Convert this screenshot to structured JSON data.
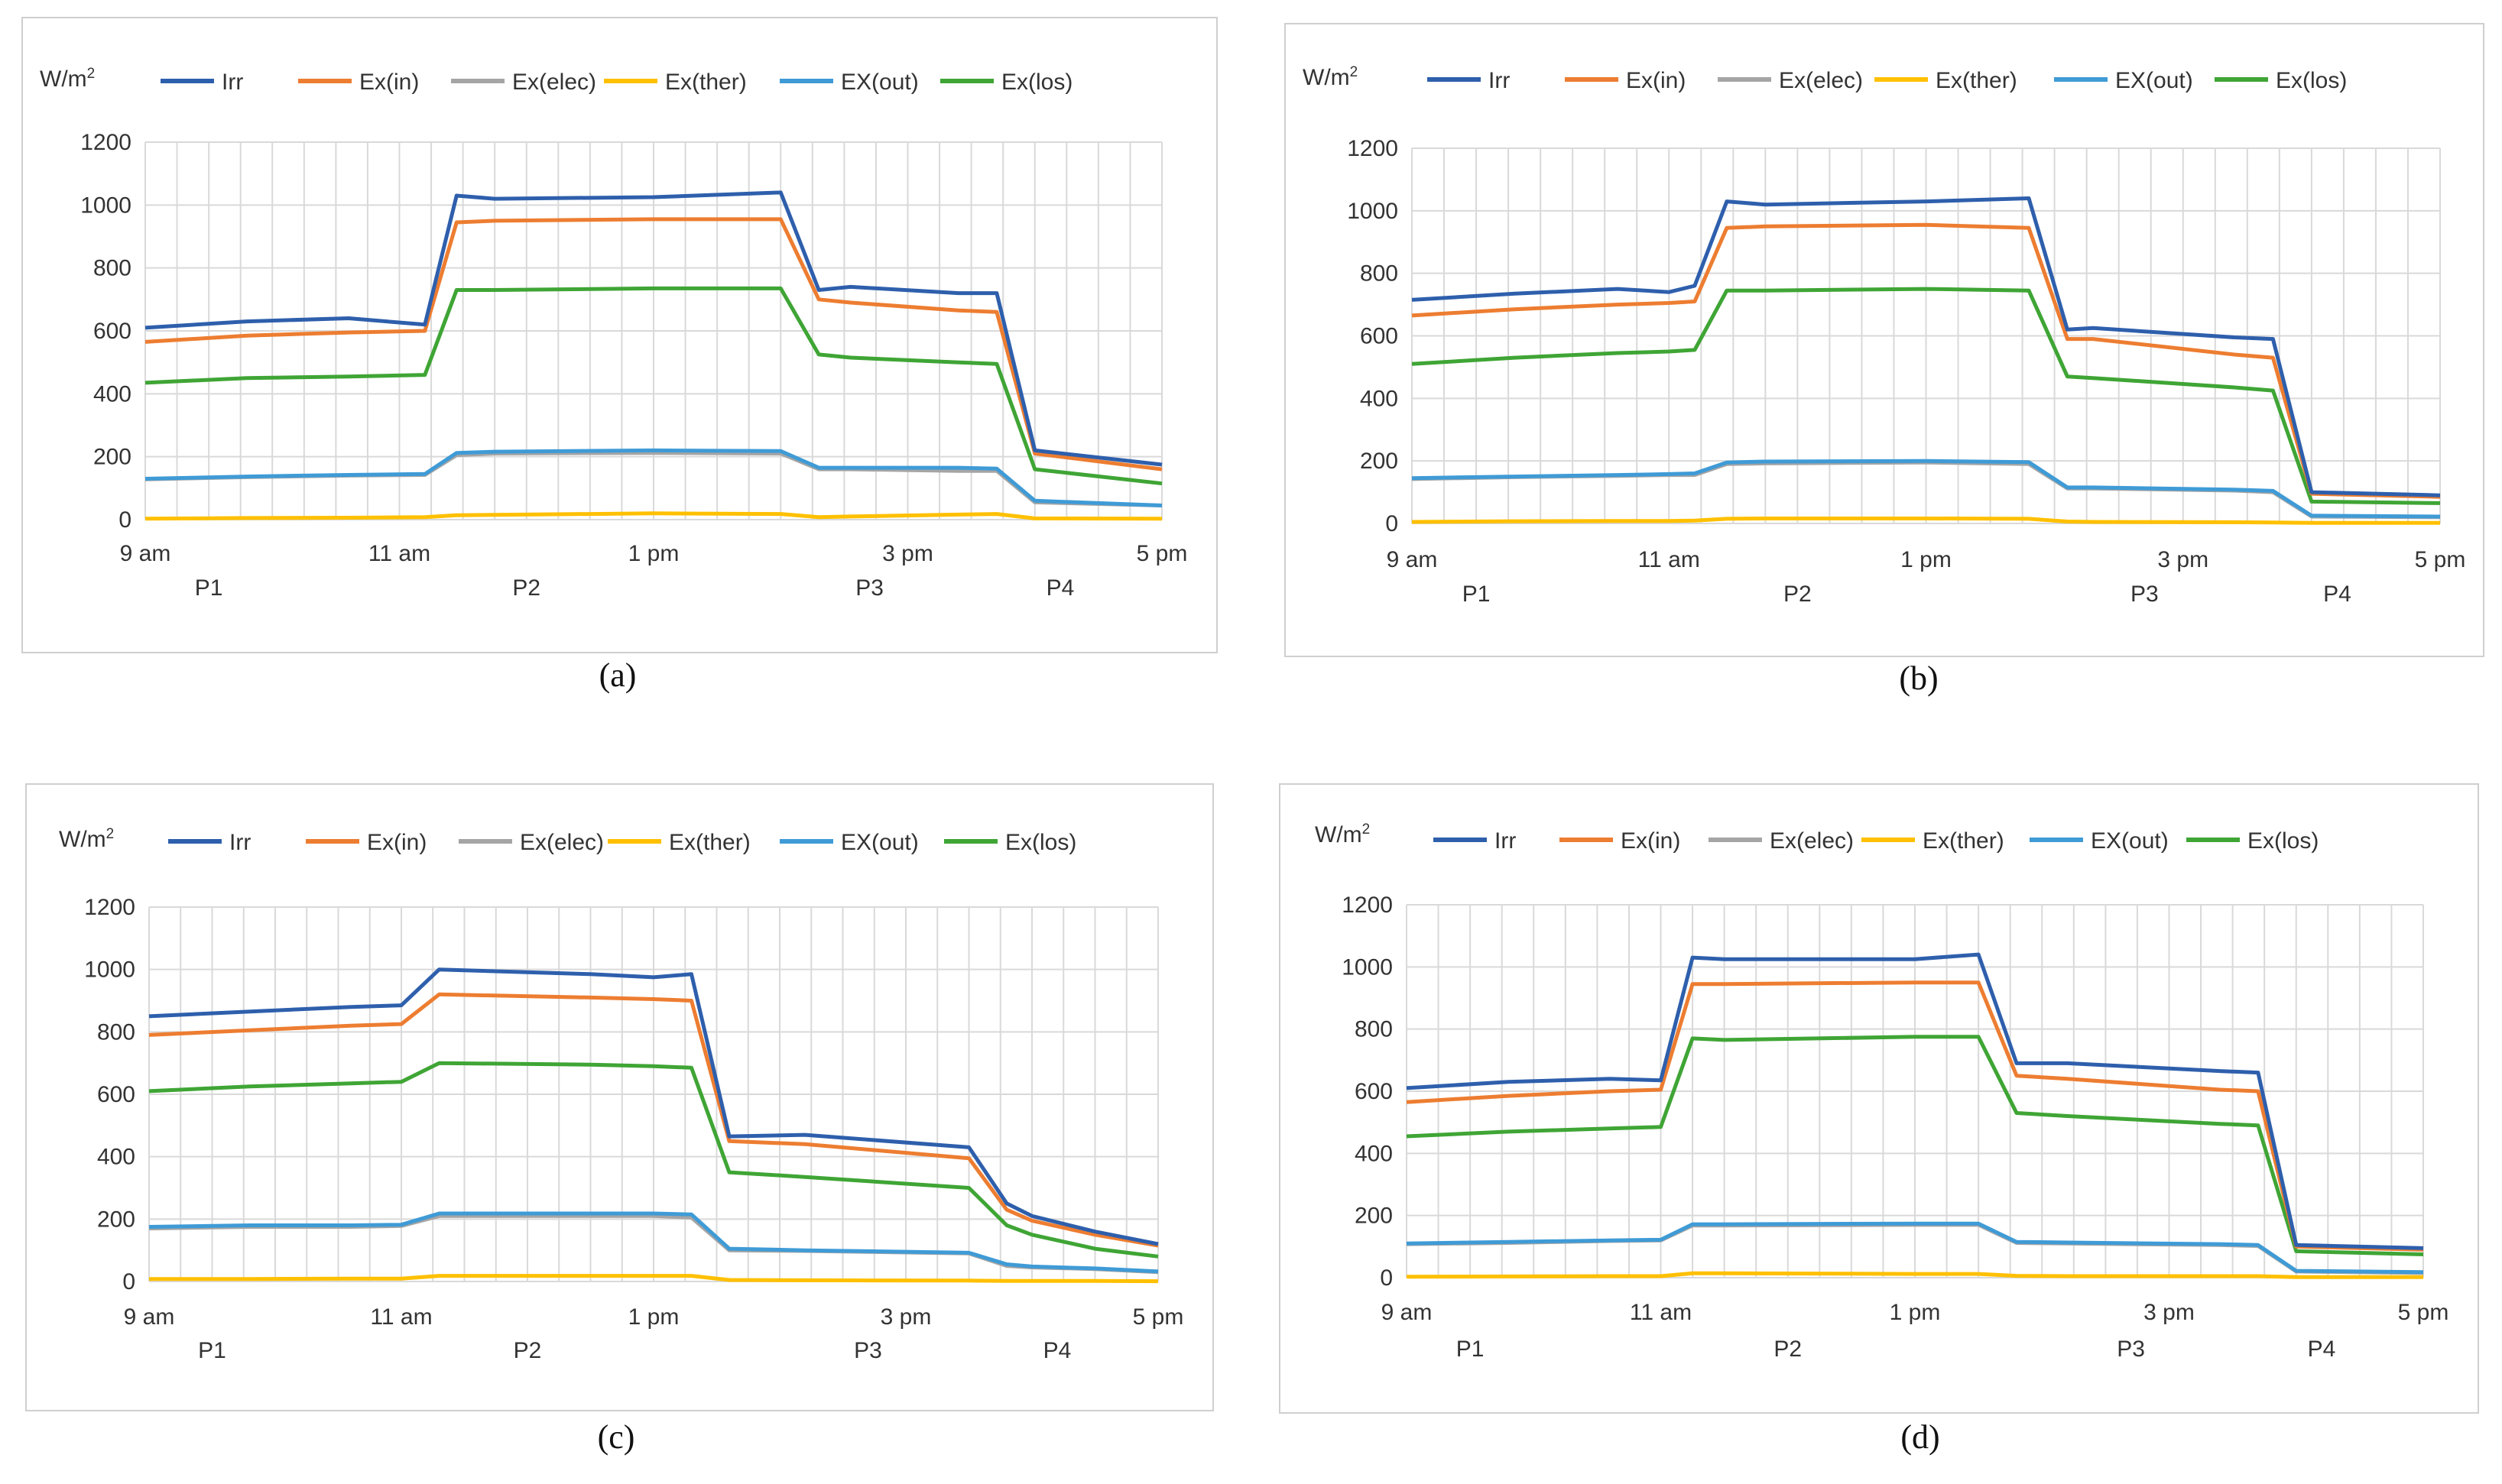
{
  "figure": {
    "y_unit": "W/m",
    "y_unit_sup": "2",
    "x_tick_labels": [
      "9 am",
      "11 am",
      "1 pm",
      "3 pm",
      "5 pm"
    ],
    "period_labels": [
      "P1",
      "P2",
      "P3",
      "P4"
    ]
  },
  "chart_data": [
    {
      "type": "line",
      "caption": "(a)",
      "ylim": [
        0,
        1200
      ],
      "yticks": [
        0,
        200,
        400,
        600,
        800,
        1000,
        1200
      ],
      "grid": true,
      "legend_position": "top",
      "x": [
        0,
        0.8,
        1.6,
        2.2,
        2.45,
        2.75,
        4.0,
        5.0,
        5.3,
        5.55,
        6.4,
        6.7,
        7.0,
        8.0
      ],
      "series": [
        {
          "name": "Irr",
          "color": "#2e5fac",
          "values": [
            610,
            630,
            640,
            620,
            1030,
            1020,
            1025,
            1040,
            730,
            740,
            720,
            720,
            220,
            175
          ]
        },
        {
          "name": "Ex(in)",
          "color": "#ed7d31",
          "values": [
            565,
            585,
            595,
            600,
            945,
            950,
            955,
            955,
            700,
            690,
            665,
            660,
            210,
            160
          ]
        },
        {
          "name": "Ex(elec)",
          "color": "#a5a5a5",
          "values": [
            128,
            135,
            140,
            142,
            205,
            210,
            212,
            210,
            160,
            160,
            155,
            155,
            55,
            45
          ]
        },
        {
          "name": "Ex(ther)",
          "color": "#ffc000",
          "values": [
            3,
            5,
            6,
            8,
            14,
            15,
            20,
            18,
            8,
            10,
            16,
            18,
            4,
            3
          ]
        },
        {
          "name": "EX(out)",
          "color": "#3f9bd6",
          "values": [
            130,
            137,
            142,
            145,
            212,
            216,
            220,
            218,
            165,
            165,
            165,
            162,
            60,
            45
          ]
        },
        {
          "name": "Ex(los)",
          "color": "#3fa535",
          "values": [
            435,
            450,
            455,
            460,
            730,
            730,
            735,
            735,
            525,
            515,
            500,
            495,
            160,
            115
          ]
        }
      ]
    },
    {
      "type": "line",
      "caption": "(b)",
      "ylim": [
        0,
        1200
      ],
      "yticks": [
        0,
        200,
        400,
        600,
        800,
        1000,
        1200
      ],
      "grid": true,
      "legend_position": "top",
      "x": [
        0,
        0.8,
        1.6,
        2.0,
        2.2,
        2.45,
        2.75,
        4.0,
        4.8,
        5.1,
        5.3,
        6.4,
        6.7,
        7.0,
        8.0
      ],
      "series": [
        {
          "name": "Irr",
          "color": "#2e5fac",
          "values": [
            715,
            735,
            750,
            740,
            760,
            1030,
            1020,
            1030,
            1040,
            620,
            625,
            595,
            590,
            100,
            90
          ]
        },
        {
          "name": "Ex(in)",
          "color": "#ed7d31",
          "values": [
            665,
            685,
            700,
            705,
            710,
            945,
            950,
            955,
            945,
            590,
            590,
            540,
            530,
            95,
            85
          ]
        },
        {
          "name": "Ex(elec)",
          "color": "#a5a5a5",
          "values": [
            142,
            148,
            152,
            155,
            155,
            190,
            192,
            195,
            190,
            112,
            112,
            105,
            100,
            22,
            20
          ]
        },
        {
          "name": "Ex(ther)",
          "color": "#ffc000",
          "values": [
            5,
            7,
            8,
            8,
            9,
            15,
            16,
            16,
            15,
            6,
            5,
            4,
            3,
            2,
            2
          ]
        },
        {
          "name": "EX(out)",
          "color": "#3f9bd6",
          "values": [
            145,
            150,
            155,
            158,
            160,
            195,
            198,
            200,
            196,
            115,
            115,
            108,
            104,
            25,
            22
          ]
        },
        {
          "name": "Ex(los)",
          "color": "#3fa535",
          "values": [
            510,
            530,
            545,
            550,
            555,
            745,
            745,
            750,
            745,
            470,
            465,
            435,
            425,
            70,
            65
          ]
        }
      ]
    },
    {
      "type": "line",
      "caption": "(c)",
      "ylim": [
        0,
        1200
      ],
      "yticks": [
        0,
        200,
        400,
        600,
        800,
        1000,
        1200
      ],
      "grid": true,
      "legend_position": "top",
      "x": [
        0,
        0.8,
        1.6,
        2.0,
        2.3,
        3.5,
        4.0,
        4.3,
        4.6,
        5.2,
        6.5,
        6.8,
        7.0,
        7.5,
        8.0
      ],
      "series": [
        {
          "name": "Irr",
          "color": "#2e5fac",
          "values": [
            850,
            865,
            880,
            885,
            1000,
            985,
            975,
            985,
            465,
            470,
            430,
            250,
            210,
            160,
            120
          ]
        },
        {
          "name": "Ex(in)",
          "color": "#ed7d31",
          "values": [
            790,
            805,
            820,
            825,
            920,
            910,
            905,
            900,
            450,
            440,
            395,
            230,
            195,
            150,
            115
          ]
        },
        {
          "name": "Ex(elec)",
          "color": "#a5a5a5",
          "values": [
            170,
            175,
            175,
            178,
            210,
            210,
            210,
            205,
            100,
            98,
            90,
            50,
            45,
            40,
            30
          ]
        },
        {
          "name": "Ex(ther)",
          "color": "#ffc000",
          "values": [
            8,
            8,
            9,
            9,
            18,
            18,
            18,
            18,
            5,
            4,
            3,
            2,
            2,
            2,
            1
          ]
        },
        {
          "name": "EX(out)",
          "color": "#3f9bd6",
          "values": [
            175,
            180,
            180,
            182,
            218,
            218,
            218,
            215,
            105,
            100,
            92,
            55,
            48,
            42,
            32
          ]
        },
        {
          "name": "Ex(los)",
          "color": "#3fa535",
          "values": [
            610,
            625,
            635,
            640,
            700,
            695,
            690,
            685,
            350,
            335,
            300,
            180,
            150,
            105,
            80
          ]
        }
      ]
    },
    {
      "type": "line",
      "caption": "(d)",
      "ylim": [
        0,
        1200
      ],
      "yticks": [
        0,
        200,
        400,
        600,
        800,
        1000,
        1200
      ],
      "grid": true,
      "legend_position": "top",
      "x": [
        0,
        0.8,
        1.6,
        2.0,
        2.25,
        2.5,
        4.0,
        4.5,
        4.8,
        5.2,
        6.4,
        6.7,
        7.0,
        8.0
      ],
      "series": [
        {
          "name": "Irr",
          "color": "#2e5fac",
          "values": [
            610,
            630,
            640,
            635,
            1030,
            1025,
            1025,
            1040,
            690,
            690,
            665,
            660,
            105,
            95
          ]
        },
        {
          "name": "Ex(in)",
          "color": "#ed7d31",
          "values": [
            565,
            585,
            600,
            605,
            945,
            945,
            950,
            950,
            650,
            640,
            605,
            600,
            100,
            90
          ]
        },
        {
          "name": "Ex(elec)",
          "color": "#a5a5a5",
          "values": [
            108,
            112,
            118,
            120,
            168,
            168,
            170,
            170,
            112,
            110,
            105,
            102,
            20,
            15
          ]
        },
        {
          "name": "Ex(ther)",
          "color": "#ffc000",
          "values": [
            3,
            4,
            5,
            5,
            14,
            14,
            12,
            12,
            6,
            5,
            5,
            5,
            2,
            2
          ]
        },
        {
          "name": "EX(out)",
          "color": "#3f9bd6",
          "values": [
            110,
            115,
            120,
            122,
            172,
            172,
            174,
            174,
            115,
            113,
            108,
            105,
            22,
            18
          ]
        },
        {
          "name": "Ex(los)",
          "color": "#3fa535",
          "values": [
            455,
            470,
            480,
            485,
            770,
            765,
            775,
            775,
            530,
            520,
            495,
            490,
            85,
            75
          ]
        }
      ]
    }
  ]
}
